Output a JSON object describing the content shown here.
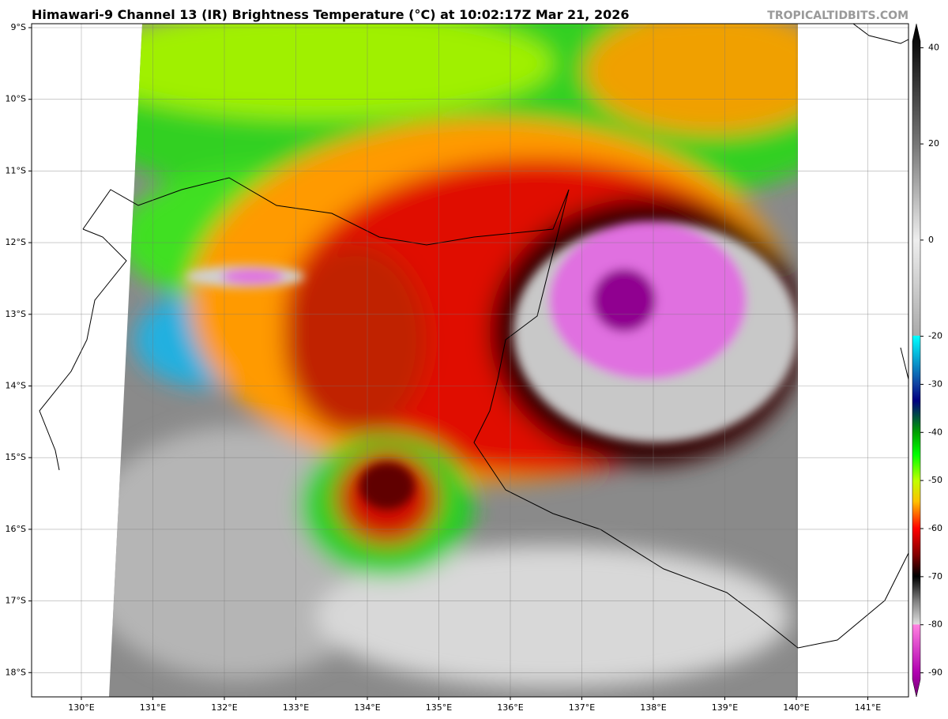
{
  "title": "Himawari-9 Channel 13 (IR) Brightness Temperature (°C) at 10:02:17Z Mar 21, 2026",
  "watermark": "TROPICALTIDBITS.COM",
  "map": {
    "lat_labels": [
      "9°S",
      "10°S",
      "11°S",
      "12°S",
      "13°S",
      "14°S",
      "15°S",
      "16°S",
      "17°S",
      "18°S"
    ],
    "lon_labels": [
      "130°E",
      "131°E",
      "132°E",
      "133°E",
      "134°E",
      "135°E",
      "136°E",
      "137°E",
      "138°E",
      "139°E",
      "140°E",
      "141°E"
    ]
  },
  "colorbar": {
    "lim": [
      -95,
      45
    ],
    "ticks": [
      40,
      20,
      0,
      -20,
      -30,
      -40,
      -50,
      -60,
      -70,
      -80,
      -90
    ]
  }
}
